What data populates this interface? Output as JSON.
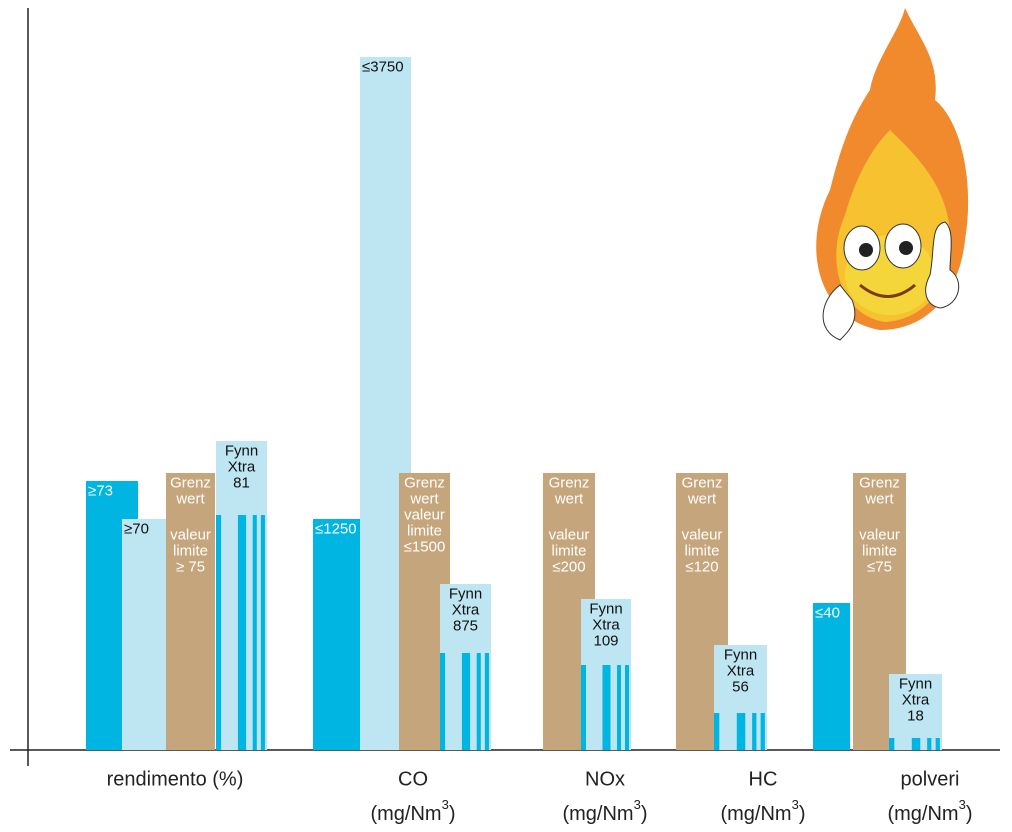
{
  "groups": [
    {
      "label": "rendimento (%)",
      "bars": [
        {
          "kind": "dark",
          "lines": [
            "≥73"
          ]
        },
        {
          "kind": "light",
          "lines": [
            "≥70"
          ]
        },
        {
          "kind": "limit",
          "lines": [
            "Grenz",
            "wert",
            "valeur",
            "limite",
            "≥ 75"
          ]
        },
        {
          "kind": "fynn",
          "lines": [
            "Fynn",
            "Xtra",
            "81"
          ]
        }
      ]
    },
    {
      "label": "CO",
      "unit": [
        "(mg/Nm",
        "3",
        ")"
      ],
      "bars": [
        {
          "kind": "dark",
          "lines": [
            "≤1250"
          ]
        },
        {
          "kind": "light",
          "lines": [
            "≤3750"
          ]
        },
        {
          "kind": "limit",
          "lines": [
            "Grenz",
            "wert",
            "valeur",
            "limite",
            "≤1500"
          ]
        },
        {
          "kind": "fynn",
          "lines": [
            "Fynn",
            "Xtra",
            "875"
          ]
        }
      ]
    },
    {
      "label": "NOx",
      "unit": [
        "(mg/Nm",
        "3",
        ")"
      ],
      "bars": [
        {
          "kind": "limit",
          "lines": [
            "Grenz",
            "wert",
            "valeur",
            "limite",
            "≤200"
          ]
        },
        {
          "kind": "fynn",
          "lines": [
            "Fynn",
            "Xtra",
            "109"
          ]
        }
      ]
    },
    {
      "label": "HC",
      "unit": [
        "(mg/Nm",
        "3",
        ")"
      ],
      "bars": [
        {
          "kind": "limit",
          "lines": [
            "Grenz",
            "wert",
            "valeur",
            "limite",
            "≤120"
          ]
        },
        {
          "kind": "fynn",
          "lines": [
            "Fynn",
            "Xtra",
            "56"
          ]
        }
      ]
    },
    {
      "label": "polveri",
      "unit": [
        "(mg/Nm",
        "3",
        ")"
      ],
      "bars": [
        {
          "kind": "dark",
          "lines": [
            "≤40"
          ]
        },
        {
          "kind": "limit",
          "lines": [
            "Grenz",
            "wert",
            "valeur",
            "limite",
            "≤75"
          ]
        },
        {
          "kind": "fynn",
          "lines": [
            "Fynn",
            "Xtra",
            "18"
          ]
        }
      ]
    }
  ]
}
